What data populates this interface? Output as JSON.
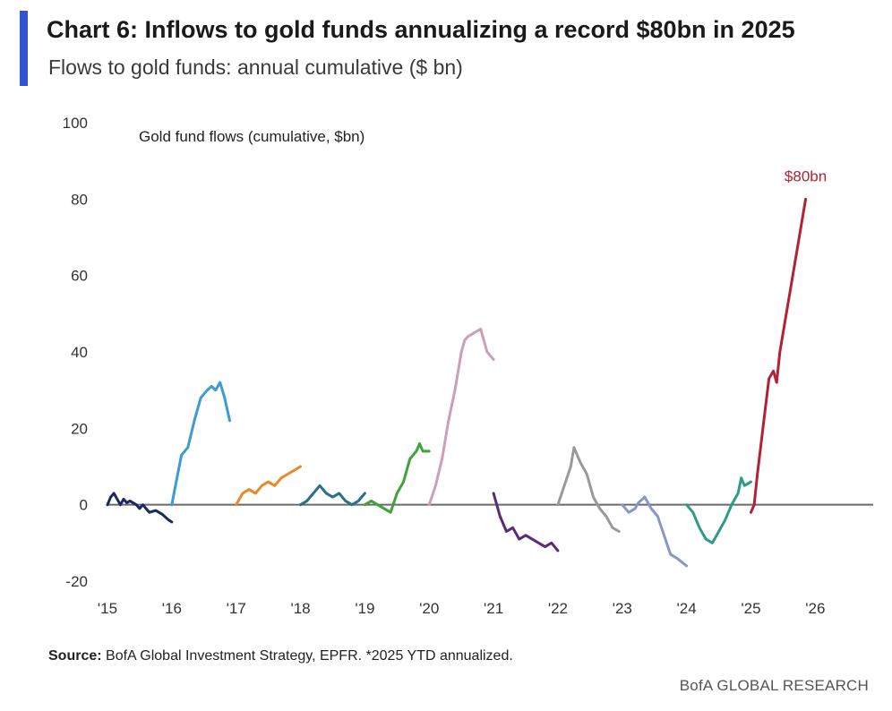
{
  "header": {
    "title": "Chart 6: Inflows to gold funds annualizing a record $80bn in 2025",
    "subtitle": "Flows to gold funds: annual cumulative ($ bn)",
    "accent_color": "#2f55d4"
  },
  "footer": {
    "source_label": "Source:",
    "source_text": " BofA Global Investment Strategy, EPFR. *2025 YTD annualized.",
    "brand": "BofA GLOBAL RESEARCH"
  },
  "chart_data": {
    "type": "line",
    "title": "Chart 6: Inflows to gold funds annualizing a record $80bn in 2025",
    "subtitle": "Flows to gold funds: annual cumulative ($ bn)",
    "inner_label": "Gold fund flows (cumulative, $bn)",
    "xlabel": "",
    "ylabel": "",
    "xlim": [
      2015,
      2026.9
    ],
    "ylim": [
      -20,
      100
    ],
    "y_ticks": [
      100,
      80,
      60,
      40,
      20,
      0,
      -20
    ],
    "x_ticks": [
      {
        "x": 2015,
        "label": "'15"
      },
      {
        "x": 2016,
        "label": "'16"
      },
      {
        "x": 2017,
        "label": "'17"
      },
      {
        "x": 2018,
        "label": "'18"
      },
      {
        "x": 2019,
        "label": "'19"
      },
      {
        "x": 2020,
        "label": "'20"
      },
      {
        "x": 2021,
        "label": "'21"
      },
      {
        "x": 2022,
        "label": "'22"
      },
      {
        "x": 2023,
        "label": "'23"
      },
      {
        "x": 2024,
        "label": "'24"
      },
      {
        "x": 2025,
        "label": "'25"
      },
      {
        "x": 2026,
        "label": "'26"
      }
    ],
    "zero_line": true,
    "grid": false,
    "legend": "none",
    "annotations": [
      {
        "text": "$80bn",
        "x": 2025.85,
        "y": 86,
        "color": "#b22234"
      }
    ],
    "series": [
      {
        "year": 2015,
        "color": "#1b2a5e",
        "points": [
          [
            2015.0,
            0
          ],
          [
            2015.05,
            2
          ],
          [
            2015.1,
            3
          ],
          [
            2015.15,
            1.5
          ],
          [
            2015.2,
            0
          ],
          [
            2015.25,
            1.5
          ],
          [
            2015.3,
            0.5
          ],
          [
            2015.35,
            1
          ],
          [
            2015.45,
            0
          ],
          [
            2015.5,
            -1
          ],
          [
            2015.55,
            0
          ],
          [
            2015.65,
            -2
          ],
          [
            2015.75,
            -1.5
          ],
          [
            2015.85,
            -2.5
          ],
          [
            2015.95,
            -4
          ],
          [
            2016.0,
            -4.5
          ]
        ]
      },
      {
        "year": 2016,
        "color": "#3a9bd5",
        "points": [
          [
            2016.0,
            0
          ],
          [
            2016.08,
            7
          ],
          [
            2016.15,
            13
          ],
          [
            2016.25,
            15
          ],
          [
            2016.35,
            22
          ],
          [
            2016.45,
            28
          ],
          [
            2016.55,
            30
          ],
          [
            2016.62,
            31
          ],
          [
            2016.68,
            30
          ],
          [
            2016.75,
            32
          ],
          [
            2016.82,
            28
          ],
          [
            2016.9,
            22
          ]
        ]
      },
      {
        "year": 2017,
        "color": "#e8892c",
        "points": [
          [
            2017.0,
            0
          ],
          [
            2017.1,
            3
          ],
          [
            2017.2,
            4
          ],
          [
            2017.3,
            3
          ],
          [
            2017.4,
            5
          ],
          [
            2017.5,
            6
          ],
          [
            2017.6,
            5
          ],
          [
            2017.7,
            7
          ],
          [
            2017.8,
            8
          ],
          [
            2017.9,
            9
          ],
          [
            2018.0,
            10
          ]
        ]
      },
      {
        "year": 2018,
        "color": "#2b6f8a",
        "points": [
          [
            2018.0,
            0
          ],
          [
            2018.1,
            1
          ],
          [
            2018.2,
            3
          ],
          [
            2018.3,
            5
          ],
          [
            2018.4,
            3
          ],
          [
            2018.5,
            2
          ],
          [
            2018.6,
            3
          ],
          [
            2018.7,
            1
          ],
          [
            2018.8,
            0
          ],
          [
            2018.9,
            1
          ],
          [
            2019.0,
            3
          ]
        ]
      },
      {
        "year": 2019,
        "color": "#3fa33a",
        "points": [
          [
            2019.0,
            0
          ],
          [
            2019.1,
            1
          ],
          [
            2019.2,
            0
          ],
          [
            2019.3,
            -1
          ],
          [
            2019.4,
            -2
          ],
          [
            2019.5,
            3
          ],
          [
            2019.6,
            6
          ],
          [
            2019.7,
            12
          ],
          [
            2019.8,
            14
          ],
          [
            2019.85,
            16
          ],
          [
            2019.9,
            14
          ],
          [
            2020.0,
            14
          ]
        ]
      },
      {
        "year": 2020,
        "color": "#c9a0b8",
        "points": [
          [
            2020.0,
            0
          ],
          [
            2020.1,
            5
          ],
          [
            2020.2,
            12
          ],
          [
            2020.3,
            22
          ],
          [
            2020.4,
            30
          ],
          [
            2020.5,
            40
          ],
          [
            2020.55,
            43
          ],
          [
            2020.6,
            44
          ],
          [
            2020.7,
            45
          ],
          [
            2020.8,
            46
          ],
          [
            2020.9,
            40
          ],
          [
            2021.0,
            38
          ]
        ]
      },
      {
        "year": 2021,
        "color": "#5a2c75",
        "points": [
          [
            2021.0,
            3
          ],
          [
            2021.1,
            -3
          ],
          [
            2021.2,
            -7
          ],
          [
            2021.3,
            -6
          ],
          [
            2021.4,
            -9
          ],
          [
            2021.5,
            -8
          ],
          [
            2021.6,
            -9
          ],
          [
            2021.7,
            -10
          ],
          [
            2021.8,
            -11
          ],
          [
            2021.9,
            -10
          ],
          [
            2022.0,
            -12
          ]
        ]
      },
      {
        "year": 2022,
        "color": "#999999",
        "points": [
          [
            2022.0,
            0
          ],
          [
            2022.1,
            5
          ],
          [
            2022.2,
            10
          ],
          [
            2022.25,
            15
          ],
          [
            2022.35,
            11
          ],
          [
            2022.45,
            8
          ],
          [
            2022.55,
            2
          ],
          [
            2022.65,
            -1
          ],
          [
            2022.75,
            -3
          ],
          [
            2022.85,
            -6
          ],
          [
            2022.95,
            -7
          ]
        ]
      },
      {
        "year": 2023,
        "color": "#8c95c8",
        "points": [
          [
            2023.0,
            0
          ],
          [
            2023.1,
            -2
          ],
          [
            2023.2,
            -1
          ],
          [
            2023.25,
            0.5
          ],
          [
            2023.35,
            2
          ],
          [
            2023.45,
            -1
          ],
          [
            2023.55,
            -3
          ],
          [
            2023.65,
            -8
          ],
          [
            2023.75,
            -13
          ],
          [
            2023.85,
            -14
          ],
          [
            2024.0,
            -16
          ]
        ]
      },
      {
        "year": 2024,
        "color": "#2e9c83",
        "points": [
          [
            2024.0,
            0
          ],
          [
            2024.1,
            -2
          ],
          [
            2024.2,
            -6
          ],
          [
            2024.3,
            -9
          ],
          [
            2024.4,
            -10
          ],
          [
            2024.5,
            -7
          ],
          [
            2024.6,
            -4
          ],
          [
            2024.7,
            0
          ],
          [
            2024.8,
            3
          ],
          [
            2024.85,
            7
          ],
          [
            2024.9,
            5
          ],
          [
            2025.0,
            6
          ]
        ]
      },
      {
        "year": 2025,
        "color": "#b22234",
        "points": [
          [
            2025.0,
            -2
          ],
          [
            2025.05,
            0
          ],
          [
            2025.1,
            8
          ],
          [
            2025.2,
            22
          ],
          [
            2025.28,
            33
          ],
          [
            2025.35,
            35
          ],
          [
            2025.4,
            32
          ],
          [
            2025.45,
            40
          ],
          [
            2025.55,
            50
          ],
          [
            2025.65,
            60
          ],
          [
            2025.75,
            70
          ],
          [
            2025.85,
            80
          ]
        ]
      }
    ]
  }
}
